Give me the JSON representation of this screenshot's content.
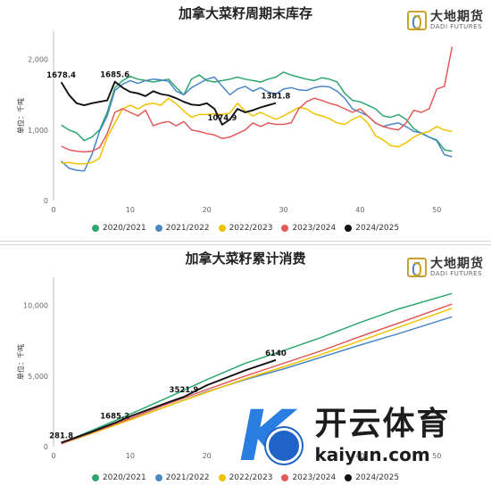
{
  "charts": [
    {
      "title": "加拿大菜籽周期末库存",
      "ylabel": "单位：千吨",
      "logo": {
        "cn": "大地期货",
        "en": "DADI FUTURES"
      }
    },
    {
      "title": "加拿大菜籽累计消费",
      "ylabel": "单位：千吨",
      "logo": {
        "cn": "大地期货",
        "en": "DADI FUTURES"
      }
    }
  ],
  "watermark": {
    "cn": "开云体育",
    "en": "kaiyun.com"
  },
  "chart_data": [
    {
      "type": "line",
      "title": "加拿大菜籽周期末库存",
      "xlabel": "",
      "ylabel": "单位：千吨",
      "xlim": [
        0,
        53
      ],
      "ylim": [
        0,
        2400
      ],
      "xticks": [
        0,
        10,
        20,
        30,
        40,
        50
      ],
      "yticks": [
        0,
        1000,
        2000
      ],
      "ytick_labels": [
        "0",
        "1,000",
        "2,000"
      ],
      "grid": false,
      "legend_position": "bottom",
      "annotations": [
        {
          "x": 1,
          "y": 1678.4,
          "text": "1678.4"
        },
        {
          "x": 8,
          "y": 1685.6,
          "text": "1685.6"
        },
        {
          "x": 22,
          "y": 1074.9,
          "text": "1074.9"
        },
        {
          "x": 29,
          "y": 1381.8,
          "text": "1381.8"
        }
      ],
      "series": [
        {
          "name": "2020/2021",
          "color": "#2ea66f",
          "x": [
            1,
            2,
            3,
            4,
            5,
            6,
            7,
            8,
            9,
            10,
            11,
            12,
            13,
            14,
            15,
            16,
            17,
            18,
            19,
            20,
            21,
            22,
            23,
            24,
            25,
            26,
            27,
            28,
            29,
            30,
            31,
            32,
            33,
            34,
            35,
            36,
            37,
            38,
            39,
            40,
            41,
            42,
            43,
            44,
            45,
            46,
            47,
            48,
            49,
            50,
            51,
            52
          ],
          "y": [
            1070,
            1000,
            960,
            850,
            900,
            1000,
            1250,
            1600,
            1700,
            1760,
            1720,
            1700,
            1680,
            1700,
            1720,
            1600,
            1500,
            1720,
            1780,
            1700,
            1680,
            1700,
            1720,
            1750,
            1720,
            1700,
            1680,
            1720,
            1750,
            1820,
            1780,
            1750,
            1720,
            1700,
            1740,
            1720,
            1680,
            1520,
            1420,
            1400,
            1350,
            1300,
            1200,
            1180,
            1220,
            1150,
            1020,
            950,
            900,
            860,
            720,
            700
          ]
        },
        {
          "name": "2021/2022",
          "color": "#4a86c5",
          "x": [
            1,
            2,
            3,
            4,
            5,
            6,
            7,
            8,
            9,
            10,
            11,
            12,
            13,
            14,
            15,
            16,
            17,
            18,
            19,
            20,
            21,
            22,
            23,
            24,
            25,
            26,
            27,
            28,
            29,
            30,
            31,
            32,
            33,
            34,
            35,
            36,
            37,
            38,
            39,
            40,
            41,
            42,
            43,
            44,
            45,
            46,
            47,
            48,
            49,
            50,
            51,
            52
          ],
          "y": [
            560,
            460,
            430,
            420,
            650,
            980,
            1200,
            1560,
            1650,
            1700,
            1660,
            1700,
            1720,
            1710,
            1690,
            1550,
            1500,
            1600,
            1660,
            1720,
            1750,
            1620,
            1500,
            1580,
            1620,
            1550,
            1600,
            1540,
            1510,
            1580,
            1600,
            1570,
            1560,
            1600,
            1620,
            1610,
            1550,
            1450,
            1300,
            1250,
            1200,
            1100,
            1050,
            1080,
            1100,
            1050,
            980,
            960,
            900,
            850,
            650,
            620
          ]
        },
        {
          "name": "2022/2023",
          "color": "#f2c200",
          "x": [
            1,
            2,
            3,
            4,
            5,
            6,
            7,
            8,
            9,
            10,
            11,
            12,
            13,
            14,
            15,
            16,
            17,
            18,
            19,
            20,
            21,
            22,
            23,
            24,
            25,
            26,
            27,
            28,
            29,
            30,
            31,
            32,
            33,
            34,
            35,
            36,
            37,
            38,
            39,
            40,
            41,
            42,
            43,
            44,
            45,
            46,
            47,
            48,
            49,
            50,
            51,
            52
          ],
          "y": [
            530,
            540,
            520,
            520,
            540,
            600,
            900,
            1100,
            1300,
            1350,
            1300,
            1360,
            1380,
            1350,
            1450,
            1370,
            1270,
            1180,
            1220,
            1220,
            1230,
            1220,
            1240,
            1380,
            1270,
            1200,
            1250,
            1200,
            1150,
            1200,
            1260,
            1320,
            1300,
            1230,
            1200,
            1160,
            1100,
            1080,
            1150,
            1200,
            1100,
            920,
            860,
            780,
            760,
            820,
            900,
            950,
            980,
            1050,
            1000,
            980
          ]
        },
        {
          "name": "2023/2024",
          "color": "#e05a5a",
          "x": [
            1,
            2,
            3,
            4,
            5,
            6,
            7,
            8,
            9,
            10,
            11,
            12,
            13,
            14,
            15,
            16,
            17,
            18,
            19,
            20,
            21,
            22,
            23,
            24,
            25,
            26,
            27,
            28,
            29,
            30,
            31,
            32,
            33,
            34,
            35,
            36,
            37,
            38,
            39,
            40,
            41,
            42,
            43,
            44,
            45,
            46,
            47,
            48,
            49,
            50,
            51,
            52
          ],
          "y": [
            770,
            720,
            700,
            690,
            700,
            750,
            950,
            1250,
            1300,
            1250,
            1200,
            1280,
            1060,
            1100,
            1120,
            1060,
            1120,
            1000,
            980,
            950,
            930,
            880,
            900,
            950,
            1000,
            1100,
            1050,
            1100,
            1080,
            1080,
            1100,
            1300,
            1400,
            1450,
            1420,
            1380,
            1350,
            1300,
            1250,
            1300,
            1200,
            1100,
            1050,
            1020,
            1000,
            1100,
            1280,
            1250,
            1300,
            1580,
            1620,
            2180
          ]
        },
        {
          "name": "2024/2025",
          "color": "#111111",
          "x": [
            1,
            2,
            3,
            4,
            5,
            6,
            7,
            8,
            9,
            10,
            11,
            12,
            13,
            14,
            15,
            16,
            17,
            18,
            19,
            20,
            21,
            22,
            23,
            24,
            25,
            26,
            27,
            28,
            29
          ],
          "y": [
            1678.4,
            1500,
            1380,
            1350,
            1380,
            1400,
            1420,
            1685.6,
            1600,
            1540,
            1520,
            1480,
            1550,
            1510,
            1490,
            1450,
            1400,
            1360,
            1350,
            1380,
            1300,
            1074.9,
            1150,
            1300,
            1250,
            1280,
            1320,
            1350,
            1381.8
          ]
        }
      ]
    },
    {
      "type": "line",
      "title": "加拿大菜籽累计消费",
      "xlabel": "",
      "ylabel": "单位：千吨",
      "xlim": [
        0,
        53
      ],
      "ylim": [
        0,
        12000
      ],
      "xticks": [
        0,
        10,
        20,
        30,
        40,
        50
      ],
      "yticks": [
        0,
        5000,
        10000
      ],
      "ytick_labels": [
        "0",
        "5,000",
        "10,000"
      ],
      "grid": false,
      "legend_position": "bottom",
      "annotations": [
        {
          "x": 1,
          "y": 281.8,
          "text": "281.8"
        },
        {
          "x": 8,
          "y": 1685.2,
          "text": "1685.2"
        },
        {
          "x": 17,
          "y": 3521.9,
          "text": "3521.9"
        },
        {
          "x": 29,
          "y": 6140,
          "text": "6140"
        }
      ],
      "series": [
        {
          "name": "2020/2021",
          "color": "#2ea66f",
          "x": [
            1,
            5,
            10,
            15,
            20,
            25,
            30,
            35,
            40,
            45,
            52
          ],
          "y": [
            240,
            1150,
            2300,
            3500,
            4750,
            5900,
            6800,
            7750,
            8800,
            9750,
            10850
          ]
        },
        {
          "name": "2021/2022",
          "color": "#4a86c5",
          "x": [
            1,
            5,
            10,
            15,
            20,
            25,
            30,
            35,
            40,
            45,
            52
          ],
          "y": [
            220,
            950,
            1900,
            2900,
            3900,
            4750,
            5500,
            6350,
            7200,
            8000,
            9200
          ]
        },
        {
          "name": "2022/2023",
          "color": "#f2c200",
          "x": [
            1,
            5,
            10,
            15,
            20,
            25,
            30,
            35,
            40,
            45,
            52
          ],
          "y": [
            200,
            950,
            1900,
            2900,
            3850,
            4800,
            5650,
            6550,
            7500,
            8450,
            9800
          ]
        },
        {
          "name": "2023/2024",
          "color": "#e05a5a",
          "x": [
            1,
            5,
            10,
            15,
            20,
            25,
            30,
            35,
            40,
            45,
            52
          ],
          "y": [
            210,
            1000,
            2000,
            3050,
            4050,
            5000,
            5900,
            6800,
            7800,
            8750,
            10100
          ]
        },
        {
          "name": "2024/2025",
          "color": "#111111",
          "x": [
            1,
            5,
            8,
            10,
            15,
            17,
            20,
            25,
            29
          ],
          "y": [
            281.8,
            1050,
            1685.2,
            2150,
            3150,
            3521.9,
            4350,
            5400,
            6140
          ]
        }
      ]
    }
  ]
}
